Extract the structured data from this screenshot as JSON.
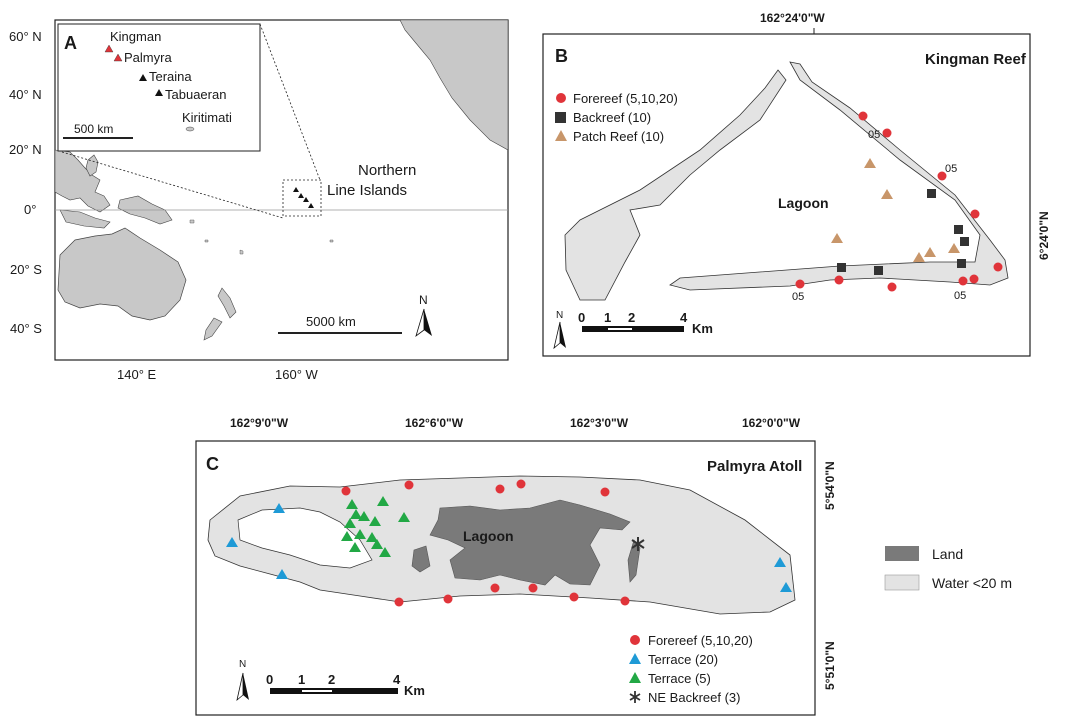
{
  "panel_a": {
    "letter": "A",
    "lat_labels": [
      "60° N",
      "40° N",
      "20° N",
      "0°",
      "20° S",
      "40° S"
    ],
    "lon_labels": [
      "140° E",
      "160° W"
    ],
    "inset_islands": [
      "Kingman",
      "Palmyra",
      "Teraina",
      "Tabuaeran",
      "Kiritimati"
    ],
    "inset_scale": "500 km",
    "main_scale": "5000 km",
    "region_label_line1": "Northern",
    "region_label_line2": "Line Islands",
    "north": "N",
    "colors": {
      "land": "#c8c8c8",
      "highlight_triangle": "#e0343a",
      "triangle": "#111111"
    }
  },
  "panel_b": {
    "letter": "B",
    "title": "Kingman Reef",
    "top_lon": "162°24'0\"W",
    "right_lat": "6°24'0\"N",
    "lagoon": "Lagoon",
    "depth_labels": [
      "05",
      "05",
      "05",
      "05"
    ],
    "legend": [
      "Forereef (5,10,20)",
      "Backreef (10)",
      "Patch Reef (10)"
    ],
    "scale_ticks": [
      "0",
      "1",
      "2",
      "4"
    ],
    "scale_unit": "Km",
    "north": "N",
    "colors": {
      "forereef": "#e0343a",
      "backreef": "#333333",
      "patch": "#c8966a",
      "water": "#e3e3e3"
    }
  },
  "panel_c": {
    "letter": "C",
    "title": "Palmyra Atoll",
    "top_lons": [
      "162°9'0\"W",
      "162°6'0\"W",
      "162°3'0\"W",
      "162°0'0\"W"
    ],
    "right_lats": [
      "5°54'0\"N",
      "5°51'0\"N"
    ],
    "lagoon": "Lagoon",
    "legend": [
      "Forereef (5,10,20)",
      "Terrace (20)",
      "Terrace (5)",
      "NE Backreef (3)"
    ],
    "scale_ticks": [
      "0",
      "1",
      "2",
      "4"
    ],
    "scale_unit": "Km",
    "north": "N",
    "colors": {
      "forereef": "#e0343a",
      "terrace20": "#1e9ad6",
      "terrace5": "#22a845",
      "land": "#7a7a7a",
      "water": "#e3e3e3"
    }
  },
  "map_legend": {
    "land": "Land",
    "water": "Water <20 m"
  }
}
